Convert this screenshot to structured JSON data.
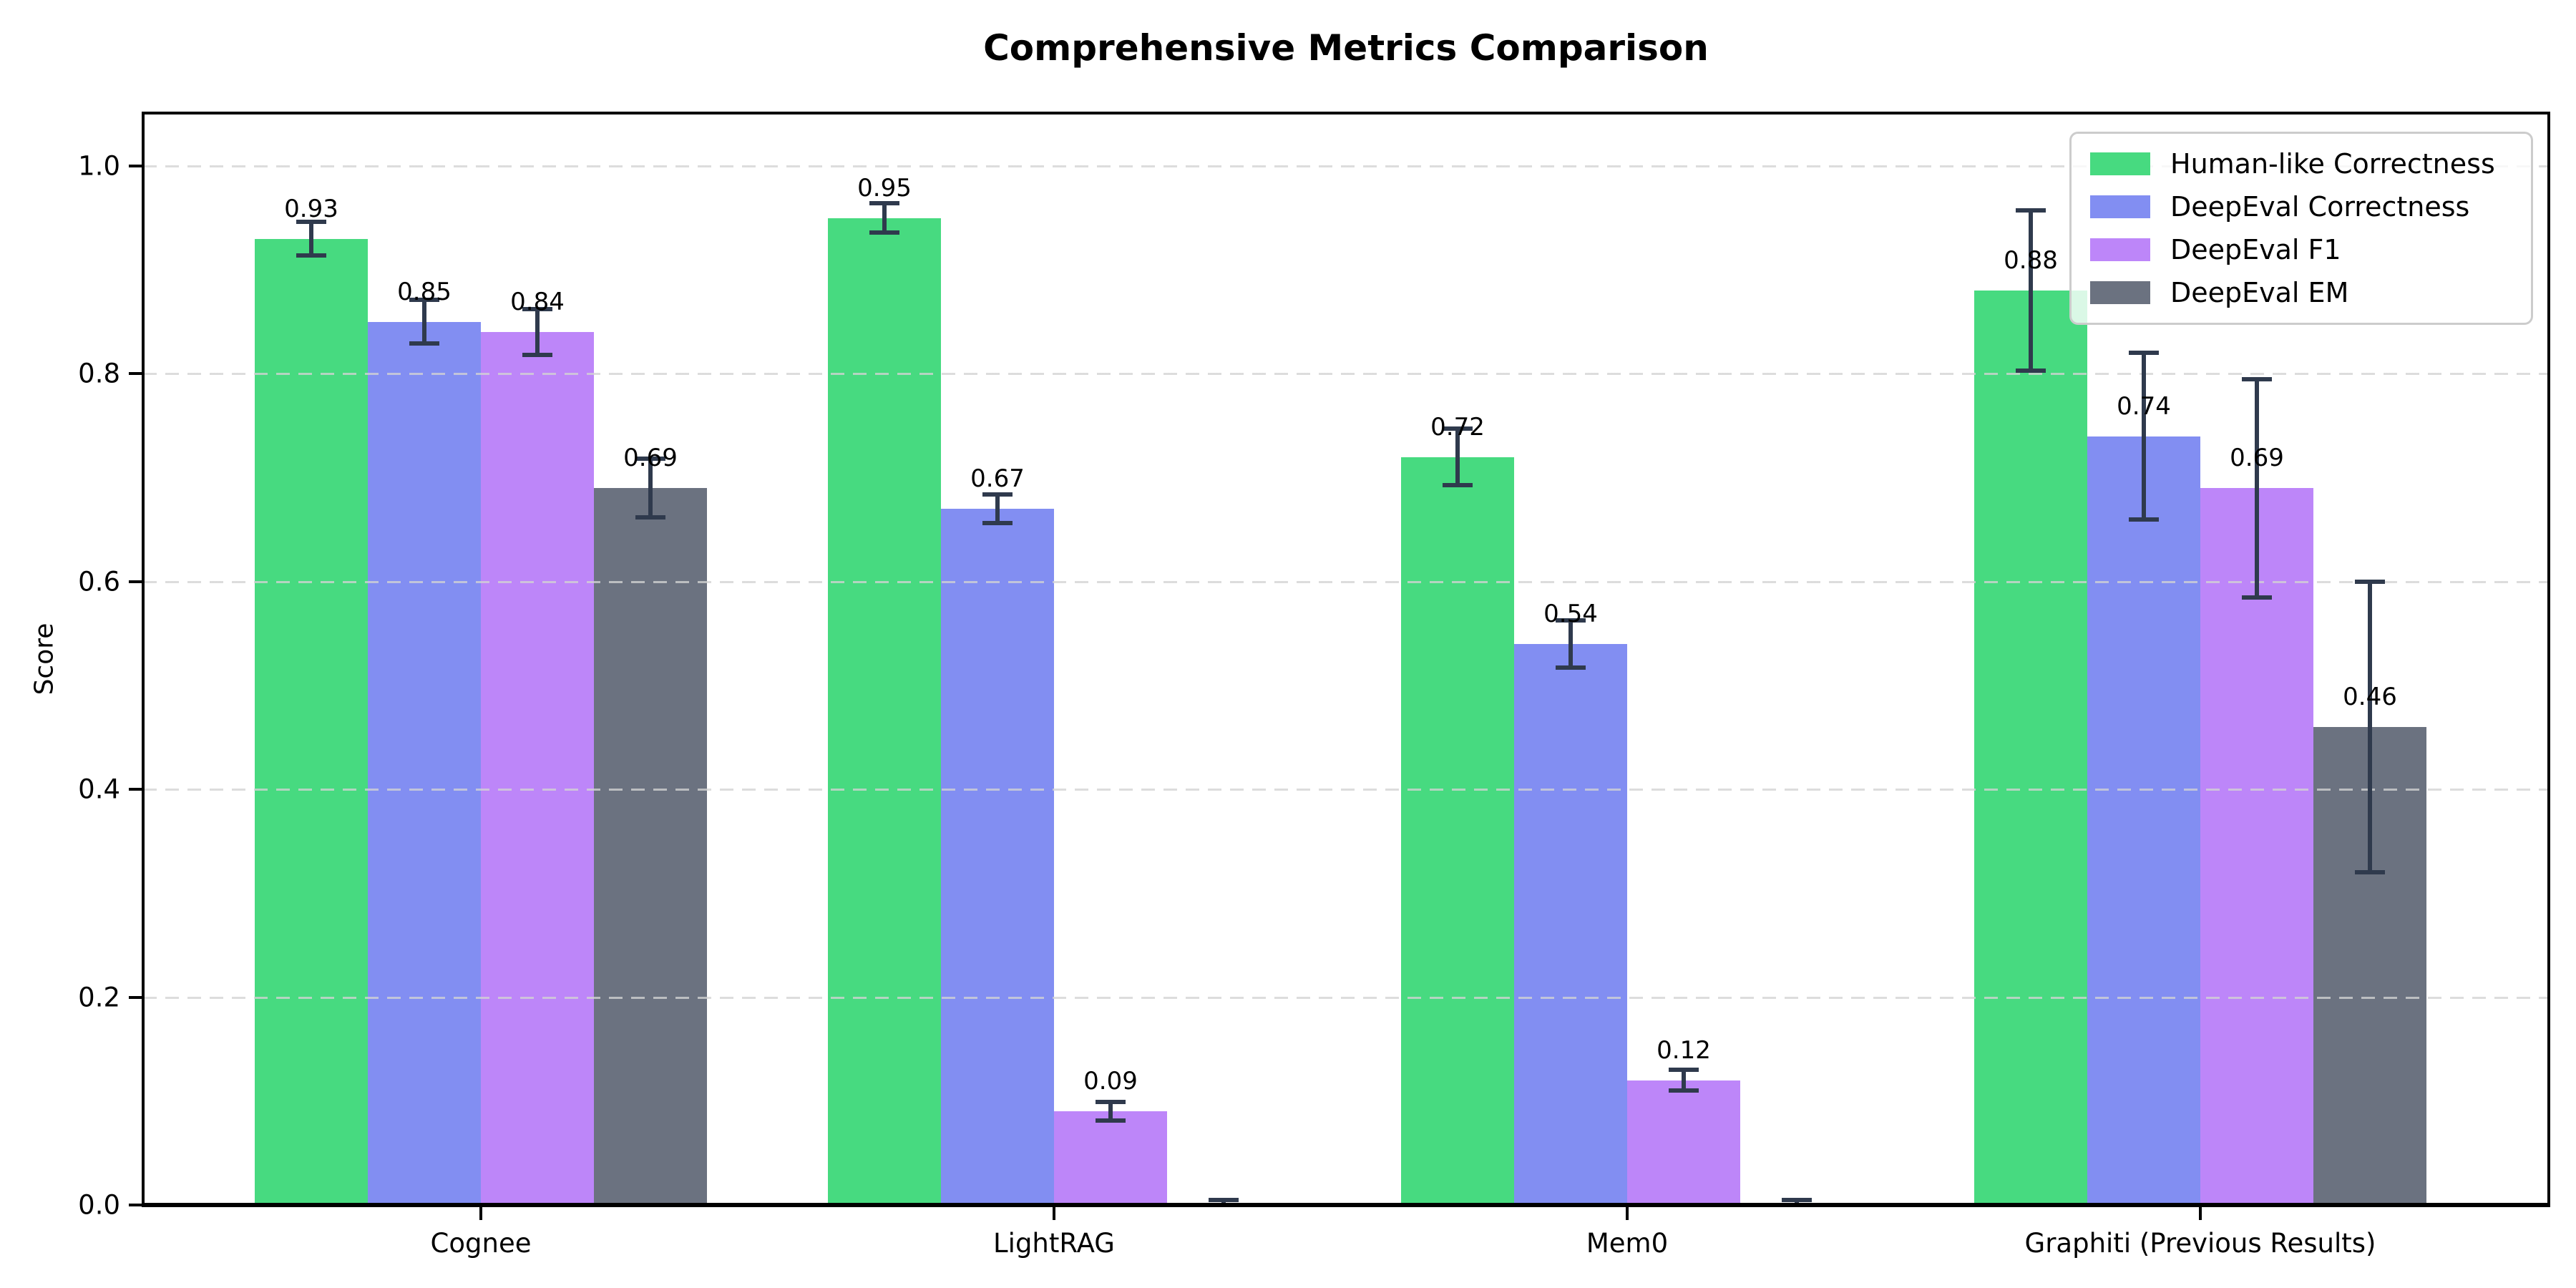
{
  "title": "Comprehensive Metrics Comparison",
  "chart_data": {
    "type": "bar",
    "title": "Comprehensive Metrics Comparison",
    "xlabel": "",
    "ylabel": "Score",
    "categories": [
      "Cognee",
      "LightRAG",
      "Mem0",
      "Graphiti (Previous Results)"
    ],
    "y_ticks": [
      {
        "value": 0.0,
        "label": "0.0"
      },
      {
        "value": 0.2,
        "label": "0.2"
      },
      {
        "value": 0.4,
        "label": "0.4"
      },
      {
        "value": 0.6,
        "label": "0.6"
      },
      {
        "value": 0.8,
        "label": "0.8"
      },
      {
        "value": 1.0,
        "label": "1.0"
      }
    ],
    "ylim": [
      0.0,
      1.05
    ],
    "grid": "horizontal-dashed",
    "grid_color": "#d3d3d3",
    "legend_position": "upper-right",
    "error_bar_color": "#2f3a4d",
    "series": [
      {
        "name": "Human-like Correctness",
        "color": "#47da80",
        "values": [
          0.93,
          0.95,
          0.72,
          0.88
        ],
        "errors": [
          0.016,
          0.014,
          0.027,
          0.077
        ],
        "bar_labels": [
          "0.93",
          "0.95",
          "0.72",
          "0.88"
        ]
      },
      {
        "name": "DeepEval Correctness",
        "color": "#828ef2",
        "values": [
          0.85,
          0.67,
          0.54,
          0.74
        ],
        "errors": [
          0.021,
          0.014,
          0.023,
          0.08
        ],
        "bar_labels": [
          "0.85",
          "0.67",
          "0.54",
          "0.74"
        ]
      },
      {
        "name": "DeepEval F1",
        "color": "#bd86f9",
        "values": [
          0.84,
          0.09,
          0.12,
          0.69
        ],
        "errors": [
          0.022,
          0.009,
          0.01,
          0.105
        ],
        "bar_labels": [
          "0.84",
          "0.09",
          "0.12",
          "0.69"
        ]
      },
      {
        "name": "DeepEval EM",
        "color": "#6b7280",
        "values": [
          0.69,
          0.0,
          0.0,
          0.46
        ],
        "errors": [
          0.028,
          0.005,
          0.005,
          0.14
        ],
        "bar_labels": [
          "0.69",
          "",
          "",
          "0.46"
        ]
      }
    ]
  }
}
